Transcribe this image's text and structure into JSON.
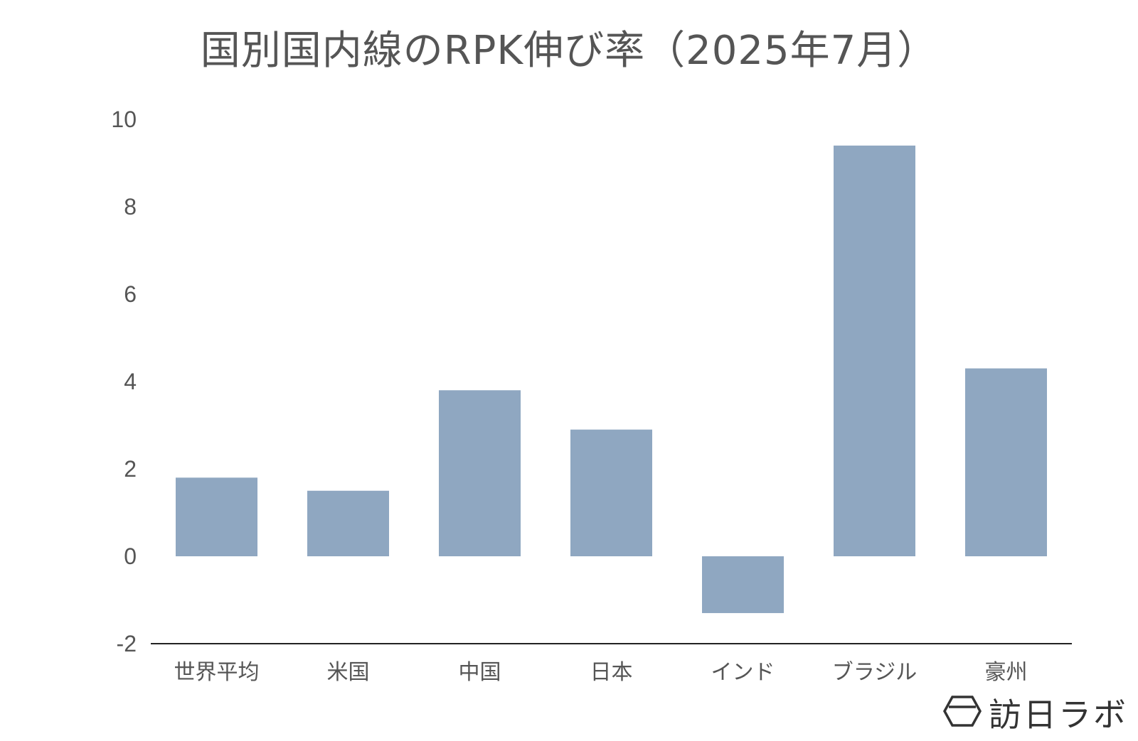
{
  "chart_data": {
    "type": "bar",
    "title": "国別国内線のRPK伸び率（2025年7月）",
    "categories": [
      "世界平均",
      "米国",
      "中国",
      "日本",
      "インド",
      "ブラジル",
      "豪州"
    ],
    "values": [
      1.8,
      1.5,
      3.8,
      2.9,
      -1.3,
      9.4,
      4.3
    ],
    "yticks": [
      "10",
      "8",
      "6",
      "4",
      "2",
      "0",
      "-2"
    ],
    "ylim": [
      -2,
      10
    ],
    "xlabel": "",
    "ylabel": "",
    "grid": false,
    "legend": "none",
    "bar_color": "#8fa7c1",
    "axis_color": "#222222"
  },
  "brand": {
    "name": "訪日ラボ",
    "icon": "hexagon-logo-icon"
  }
}
